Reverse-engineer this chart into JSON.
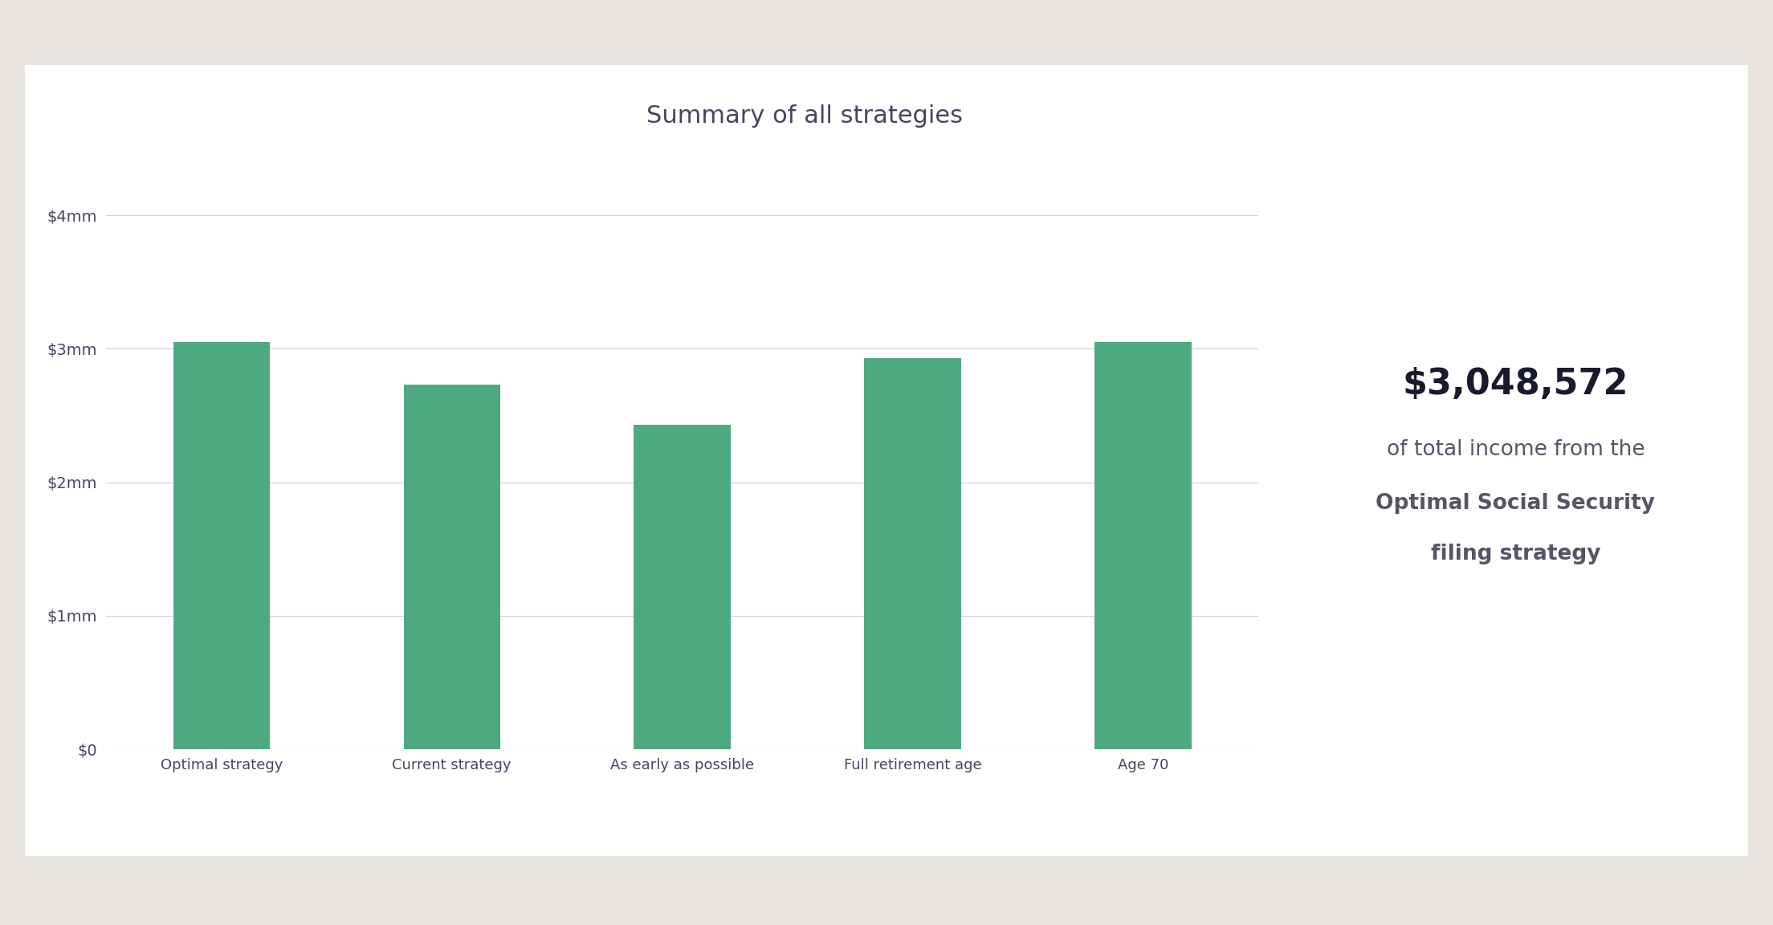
{
  "title": "Summary of all strategies",
  "categories": [
    "Optimal strategy",
    "Current strategy",
    "As early as possible",
    "Full retirement age",
    "Age 70"
  ],
  "values": [
    3048572,
    2730000,
    2430000,
    2930000,
    3048572
  ],
  "bar_color": "#4daa80",
  "background_outer": "#e8e4df",
  "background_card": "#ffffff",
  "title_color": "#4a4460",
  "tick_color": "#4a4460",
  "gridline_color": "#d0d0d0",
  "yticks": [
    0,
    1000000,
    2000000,
    3000000,
    4000000
  ],
  "ytick_labels": [
    "$0",
    "$1mm",
    "$2mm",
    "$3mm",
    "$4mm"
  ],
  "ylim": [
    0,
    4400000
  ],
  "annotation_value": "$3,048,572",
  "annotation_line1": "of total income from the",
  "annotation_line2": "Optimal Social Security",
  "annotation_line3": "filing strategy",
  "annotation_value_color": "#1a1a2e",
  "annotation_text_color": "#555566",
  "annotation_value_fontsize": 32,
  "annotation_text_fontsize": 19,
  "title_fontsize": 22,
  "tick_fontsize": 14,
  "xtick_fontsize": 13
}
